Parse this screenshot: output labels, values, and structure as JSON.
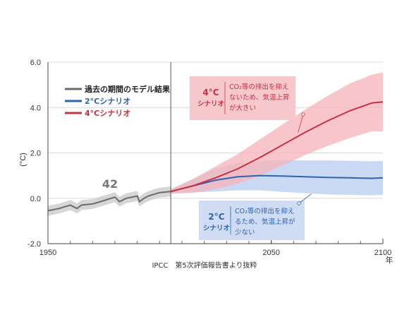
{
  "chart_data": {
    "type": "line",
    "ylabel": "(°C)",
    "x_unit_label": "年",
    "ylim": [
      -2.0,
      6.0
    ],
    "xlim": [
      1950,
      2100
    ],
    "x_ticks": [
      {
        "value": 1950,
        "label": "1950"
      },
      {
        "value": 2050,
        "label": "2050"
      },
      {
        "value": 2100,
        "label": "2100"
      }
    ],
    "y_ticks": [
      {
        "value": 6.0,
        "label": "6.0"
      },
      {
        "value": 4.0,
        "label": "4.0"
      },
      {
        "value": 2.0,
        "label": "2.0"
      },
      {
        "value": 0.0,
        "label": "0.0"
      },
      {
        "value": -2.0,
        "label": "-2.0"
      }
    ],
    "divider_year": 2005,
    "grid": true,
    "legend_position": "top-left",
    "annotation_number": "42",
    "source": "IPCC　第5次評価報告書より抜粋",
    "series": [
      {
        "name": "過去の期間のモデル結果",
        "color": "#6b6b6b",
        "band_color": "#c8c8c8",
        "x": [
          1950,
          1955,
          1960,
          1963,
          1965,
          1970,
          1975,
          1980,
          1982,
          1985,
          1990,
          1991,
          1993,
          1995,
          2000,
          2005
        ],
        "y": [
          -0.55,
          -0.45,
          -0.3,
          -0.45,
          -0.3,
          -0.25,
          -0.1,
          0.05,
          -0.15,
          0.0,
          0.1,
          -0.15,
          0.0,
          0.1,
          0.25,
          0.3
        ],
        "band_width": [
          0.22,
          0.22,
          0.22,
          0.22,
          0.22,
          0.22,
          0.22,
          0.22,
          0.22,
          0.22,
          0.22,
          0.22,
          0.22,
          0.22,
          0.22,
          0.22
        ]
      },
      {
        "name": "2°Cシナリオ",
        "color": "#2d63b0",
        "band_color": "#b7ccef",
        "x": [
          2005,
          2015,
          2025,
          2035,
          2045,
          2055,
          2065,
          2075,
          2085,
          2095,
          2100
        ],
        "y": [
          0.3,
          0.55,
          0.8,
          0.95,
          1.0,
          0.98,
          0.95,
          0.92,
          0.9,
          0.88,
          0.9
        ],
        "band_width": [
          0.1,
          0.3,
          0.5,
          0.6,
          0.65,
          0.7,
          0.72,
          0.75,
          0.75,
          0.75,
          0.75
        ]
      },
      {
        "name": "4°Cシナリオ",
        "color": "#c83240",
        "band_color": "#f6b3b8",
        "x": [
          2005,
          2015,
          2025,
          2035,
          2045,
          2055,
          2065,
          2075,
          2085,
          2095,
          2100
        ],
        "y": [
          0.3,
          0.55,
          0.9,
          1.3,
          1.8,
          2.35,
          2.9,
          3.4,
          3.85,
          4.2,
          4.25
        ],
        "band_width": [
          0.1,
          0.3,
          0.5,
          0.65,
          0.8,
          0.9,
          1.0,
          1.1,
          1.2,
          1.25,
          1.3
        ]
      }
    ],
    "callouts": [
      {
        "id": "4c",
        "head": [
          "4°C",
          "シナリオ"
        ],
        "lines": [
          "CO₂等の排出を抑え",
          "ないため、気温上昇",
          "が大きい"
        ],
        "color": "#c83240",
        "box_color": "#f6c7cb",
        "anchor": [
          2062,
          2.9
        ]
      },
      {
        "id": "2c",
        "head": [
          "2°C",
          "シナリオ"
        ],
        "lines": [
          "CO₂等の排出を抑え",
          "るため、気温上昇が",
          "少ない"
        ],
        "color": "#2d63b0",
        "box_color": "#cfdcf3",
        "anchor": [
          2068,
          0.2
        ]
      }
    ]
  }
}
